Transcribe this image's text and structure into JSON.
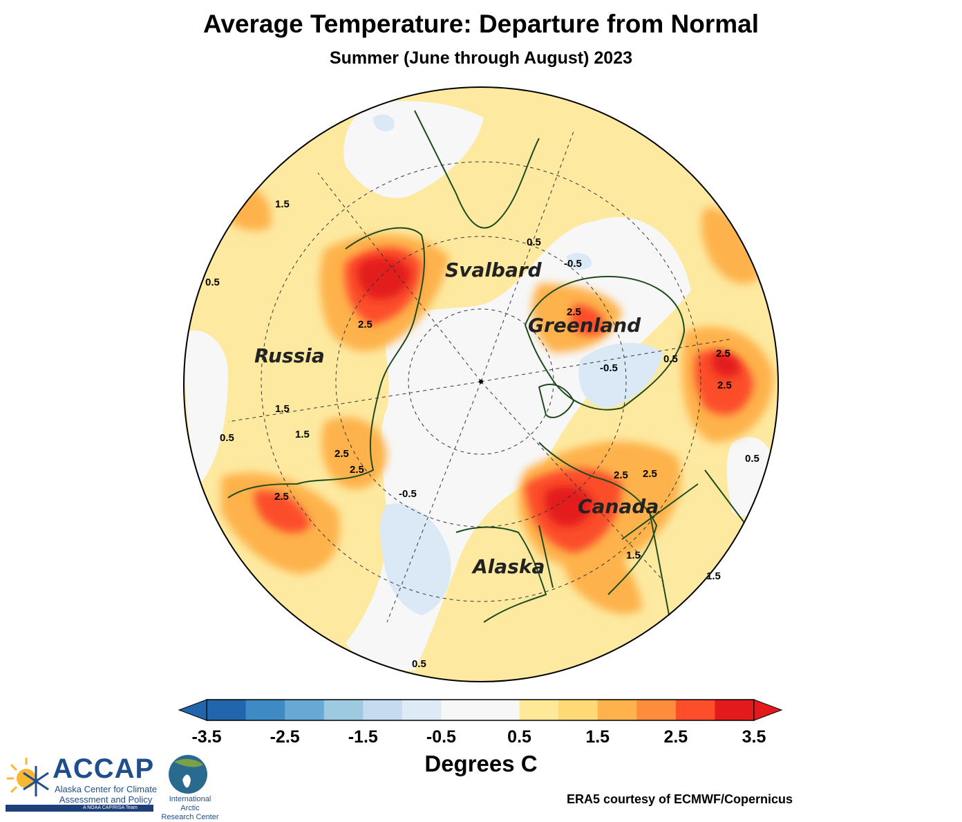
{
  "title": "Average Temperature: Departure from Normal",
  "subtitle": "Summer (June through August) 2023",
  "map": {
    "labels": {
      "svalbard": "Svalbard",
      "greenland": "Greenland",
      "russia": "Russia",
      "canada": "Canada",
      "alaska": "Alaska"
    },
    "contour_labels": [
      "0.5",
      "-0.5",
      "1.5",
      "2.5"
    ],
    "colors": {
      "ocean_neutral": "#f7f7f7",
      "coast": "#1e4a1e"
    }
  },
  "colorbar": {
    "ticks": [
      "-3.5",
      "-2.5",
      "-1.5",
      "-0.5",
      "0.5",
      "1.5",
      "2.5",
      "3.5"
    ],
    "colors": [
      "#2166ac",
      "#3d8ac4",
      "#67a9d4",
      "#9ecae1",
      "#c6dbef",
      "#deebf7",
      "#f7f7f7",
      "#f7f7f7",
      "#fee999",
      "#fed976",
      "#feb24c",
      "#fd8d3c",
      "#fc4e2a",
      "#e31a1c"
    ],
    "low_arrow_color": "#2166ac",
    "high_arrow_color": "#e31a1c",
    "units": "Degrees C"
  },
  "credit": "ERA5 courtesy of ECMWF/Copernicus",
  "logos": {
    "accap_name": "ACCAP",
    "accap_line1": "Alaska Center for Climate",
    "accap_line2": "Assessment and Policy",
    "accap_team": "A NOAA CAP/RISA Team",
    "iarc_line1": "International Arctic",
    "iarc_line2": "Research Center"
  }
}
